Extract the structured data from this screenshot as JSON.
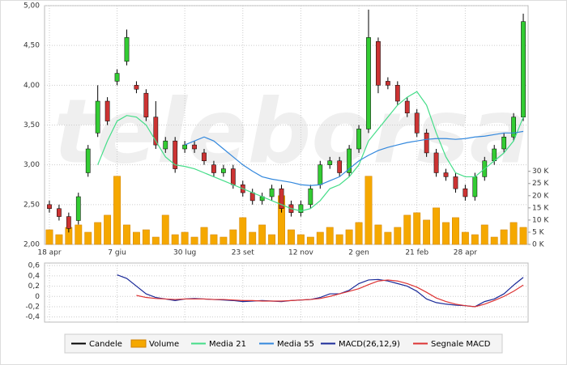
{
  "watermark": "teleborsa",
  "chart_data": [
    {
      "type": "candlestick",
      "categories": [
        "18 apr",
        null,
        null,
        null,
        null,
        null,
        null,
        "7 giu",
        null,
        null,
        null,
        null,
        null,
        null,
        "30 lug",
        null,
        null,
        null,
        null,
        null,
        "23 set",
        null,
        null,
        null,
        null,
        null,
        "12 nov",
        null,
        null,
        null,
        null,
        null,
        "2 gen",
        null,
        null,
        null,
        null,
        null,
        "21 feb",
        null,
        null,
        null,
        null,
        "28 apr",
        null,
        null,
        null,
        null,
        null,
        null
      ],
      "ylim": [
        2,
        5
      ],
      "yticks": [
        {
          "value": 2,
          "label": "2,00"
        },
        {
          "value": 2.5,
          "label": "2,50"
        },
        {
          "value": 3,
          "label": "3,00"
        },
        {
          "value": 3.5,
          "label": "3,50"
        },
        {
          "value": 4,
          "label": "4,00"
        },
        {
          "value": 4.5,
          "label": "4,50"
        },
        {
          "value": 5,
          "label": "5,00"
        }
      ],
      "y2lim": [
        0,
        98000
      ],
      "y2ticks": [
        {
          "value": 0,
          "label": "0 K"
        },
        {
          "value": 5000,
          "label": "5 K"
        },
        {
          "value": 10000,
          "label": "10 K"
        },
        {
          "value": 15000,
          "label": "15 K"
        },
        {
          "value": 20000,
          "label": "20 K"
        },
        {
          "value": 25000,
          "label": "25 K"
        },
        {
          "value": 30000,
          "label": "30 K"
        }
      ],
      "grid": true,
      "candles": {
        "name": "Candele",
        "color": "#000000",
        "up_color": "#33cc33",
        "down_color": "#cc3333",
        "open": [
          2.5,
          2.45,
          2.35,
          2.3,
          2.9,
          3.4,
          3.8,
          4.05,
          4.3,
          4.0,
          3.9,
          3.6,
          3.2,
          3.3,
          3.2,
          3.25,
          3.15,
          3.0,
          2.9,
          2.95,
          2.75,
          2.65,
          2.55,
          2.6,
          2.7,
          2.5,
          2.4,
          2.5,
          2.75,
          3.0,
          3.05,
          2.9,
          3.2,
          3.45,
          4.55,
          4.05,
          4.0,
          3.8,
          3.65,
          3.4,
          3.15,
          2.9,
          2.85,
          2.7,
          2.6,
          2.85,
          3.05,
          3.2,
          3.35,
          3.6
        ],
        "high": [
          2.55,
          2.5,
          2.4,
          2.65,
          3.25,
          4.0,
          3.85,
          4.2,
          4.7,
          4.05,
          3.95,
          3.8,
          3.35,
          3.35,
          3.3,
          3.3,
          3.2,
          3.05,
          3.0,
          3.0,
          2.8,
          2.7,
          2.65,
          2.75,
          2.75,
          2.55,
          2.55,
          2.75,
          3.05,
          3.1,
          3.1,
          3.25,
          3.5,
          4.95,
          4.6,
          4.1,
          4.05,
          3.85,
          3.7,
          3.45,
          3.2,
          2.95,
          2.9,
          2.75,
          2.9,
          3.1,
          3.25,
          3.4,
          3.65,
          4.9
        ],
        "low": [
          2.4,
          2.3,
          2.15,
          2.25,
          2.85,
          3.35,
          3.5,
          4.0,
          4.25,
          3.9,
          3.55,
          3.2,
          3.15,
          2.9,
          3.15,
          3.15,
          3.0,
          2.85,
          2.85,
          2.7,
          2.6,
          2.5,
          2.5,
          2.55,
          2.4,
          2.35,
          2.35,
          2.45,
          2.7,
          2.95,
          2.85,
          2.85,
          3.15,
          3.4,
          3.9,
          3.95,
          3.75,
          3.6,
          3.35,
          3.1,
          2.85,
          2.8,
          2.65,
          2.55,
          2.55,
          2.8,
          3.0,
          3.15,
          3.3,
          3.55
        ],
        "close": [
          2.45,
          2.35,
          2.2,
          2.6,
          3.2,
          3.8,
          3.55,
          4.15,
          4.6,
          3.95,
          3.6,
          3.25,
          3.3,
          2.95,
          3.25,
          3.2,
          3.05,
          2.9,
          2.95,
          2.75,
          2.65,
          2.55,
          2.6,
          2.7,
          2.45,
          2.4,
          2.5,
          2.7,
          3.0,
          3.05,
          2.9,
          3.2,
          3.45,
          4.6,
          4.0,
          4.0,
          3.8,
          3.65,
          3.4,
          3.15,
          2.9,
          2.85,
          2.7,
          2.6,
          2.85,
          3.05,
          3.2,
          3.35,
          3.6,
          4.8
        ]
      },
      "series": [
        {
          "name": "Volume",
          "type": "bar",
          "axis": "y2",
          "color": "#f5a800",
          "values": [
            6000,
            4000,
            7000,
            8000,
            5000,
            9000,
            12000,
            28000,
            8000,
            5000,
            6000,
            3000,
            12000,
            4000,
            5000,
            3000,
            7000,
            4000,
            3000,
            6000,
            11000,
            5000,
            8000,
            4000,
            20000,
            6000,
            4000,
            3000,
            5000,
            7000,
            4000,
            6000,
            9000,
            28000,
            8000,
            5000,
            7000,
            12000,
            13000,
            10000,
            15000,
            9000,
            11000,
            5000,
            4000,
            8000,
            3000,
            6000,
            9000,
            7000
          ]
        },
        {
          "name": "Media 21",
          "type": "line",
          "color": "#44dd88",
          "values": [
            null,
            null,
            null,
            null,
            null,
            3.0,
            3.3,
            3.55,
            3.62,
            3.6,
            3.5,
            3.3,
            3.1,
            3.0,
            2.98,
            2.95,
            2.9,
            2.85,
            2.8,
            2.75,
            2.7,
            2.65,
            2.6,
            2.55,
            2.5,
            2.45,
            2.42,
            2.45,
            2.55,
            2.7,
            2.75,
            2.85,
            3.0,
            3.3,
            3.45,
            3.6,
            3.75,
            3.85,
            3.92,
            3.75,
            3.4,
            3.1,
            2.9,
            2.85,
            2.85,
            2.95,
            3.05,
            3.15,
            3.3,
            3.6
          ]
        },
        {
          "name": "Media 55",
          "type": "line",
          "color": "#3388dd",
          "values": [
            null,
            null,
            null,
            null,
            null,
            null,
            null,
            null,
            null,
            null,
            null,
            null,
            null,
            null,
            3.25,
            3.3,
            3.35,
            3.3,
            3.2,
            3.1,
            3.0,
            2.92,
            2.85,
            2.82,
            2.8,
            2.78,
            2.75,
            2.74,
            2.75,
            2.8,
            2.85,
            2.95,
            3.05,
            3.12,
            3.18,
            3.22,
            3.25,
            3.28,
            3.3,
            3.32,
            3.33,
            3.33,
            3.32,
            3.33,
            3.35,
            3.36,
            3.38,
            3.4,
            3.4,
            3.42
          ]
        }
      ]
    },
    {
      "type": "line",
      "ylim": [
        -0.5,
        0.65
      ],
      "yticks": [
        {
          "value": -0.4,
          "label": "-0,4"
        },
        {
          "value": -0.2,
          "label": "-0,2"
        },
        0,
        {
          "value": 0.2,
          "label": "0,2"
        },
        {
          "value": 0.4,
          "label": "0,4"
        },
        {
          "value": 0.6,
          "label": "0,6"
        }
      ],
      "grid": true,
      "series": [
        {
          "name": "MACD(26,12,9)",
          "color": "#1a2a99",
          "values": [
            null,
            null,
            null,
            null,
            null,
            null,
            null,
            0.42,
            0.35,
            0.2,
            0.05,
            -0.02,
            -0.05,
            -0.08,
            -0.05,
            -0.04,
            -0.05,
            -0.06,
            -0.07,
            -0.08,
            -0.1,
            -0.09,
            -0.08,
            -0.09,
            -0.1,
            -0.08,
            -0.07,
            -0.06,
            -0.02,
            0.05,
            0.05,
            0.12,
            0.25,
            0.32,
            0.33,
            0.3,
            0.25,
            0.2,
            0.1,
            -0.05,
            -0.12,
            -0.15,
            -0.17,
            -0.18,
            -0.2,
            -0.1,
            -0.05,
            0.05,
            0.22,
            0.37
          ]
        },
        {
          "name": "Segnale MACD",
          "color": "#dd3333",
          "values": [
            null,
            null,
            null,
            null,
            null,
            null,
            null,
            null,
            null,
            0.02,
            -0.02,
            -0.04,
            -0.05,
            -0.06,
            -0.05,
            -0.05,
            -0.05,
            -0.06,
            -0.06,
            -0.07,
            -0.08,
            -0.08,
            -0.09,
            -0.09,
            -0.09,
            -0.08,
            -0.07,
            -0.06,
            -0.04,
            0.0,
            0.05,
            0.1,
            0.15,
            0.23,
            0.3,
            0.32,
            0.3,
            0.25,
            0.18,
            0.08,
            -0.03,
            -0.1,
            -0.15,
            -0.18,
            -0.2,
            -0.15,
            -0.08,
            0.0,
            0.1,
            0.22
          ]
        }
      ]
    }
  ]
}
